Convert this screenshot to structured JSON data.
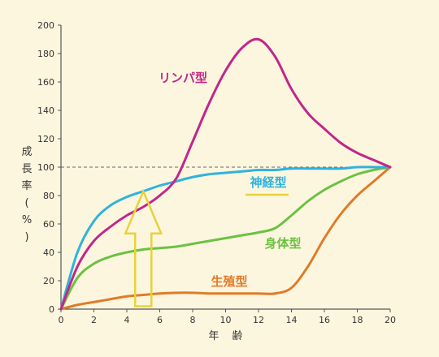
{
  "chart_data": {
    "type": "line",
    "xlabel": "年 齢",
    "ylabel": [
      "成",
      "長",
      "率",
      "(",
      "%",
      ")"
    ],
    "xlim": [
      0,
      20
    ],
    "ylim": [
      0,
      200
    ],
    "x_ticks": [
      0,
      2,
      4,
      6,
      8,
      10,
      12,
      14,
      16,
      18,
      20
    ],
    "y_ticks": [
      0,
      20,
      40,
      60,
      80,
      100,
      120,
      140,
      160,
      180,
      200
    ],
    "reference_line": 100,
    "grid": false,
    "series": [
      {
        "name": "リンパ型",
        "color": "#c2268a",
        "points": [
          [
            0,
            0
          ],
          [
            1,
            30
          ],
          [
            2,
            48
          ],
          [
            3,
            58
          ],
          [
            4,
            66
          ],
          [
            5,
            72
          ],
          [
            6,
            80
          ],
          [
            7,
            92
          ],
          [
            8,
            118
          ],
          [
            9,
            145
          ],
          [
            10,
            168
          ],
          [
            11,
            184
          ],
          [
            12,
            190
          ],
          [
            13,
            178
          ],
          [
            14,
            155
          ],
          [
            15,
            138
          ],
          [
            16,
            127
          ],
          [
            17,
            117
          ],
          [
            18,
            110
          ],
          [
            19,
            105
          ],
          [
            20,
            100
          ]
        ]
      },
      {
        "name": "神経型",
        "color": "#2eb3dd",
        "points": [
          [
            0,
            0
          ],
          [
            1,
            40
          ],
          [
            2,
            62
          ],
          [
            3,
            73
          ],
          [
            4,
            79
          ],
          [
            5,
            83
          ],
          [
            6,
            87
          ],
          [
            7,
            90
          ],
          [
            8,
            93
          ],
          [
            9,
            95
          ],
          [
            10,
            96
          ],
          [
            11,
            97
          ],
          [
            12,
            98
          ],
          [
            13,
            98
          ],
          [
            14,
            99
          ],
          [
            15,
            99
          ],
          [
            16,
            99
          ],
          [
            17,
            99
          ],
          [
            18,
            100
          ],
          [
            19,
            100
          ],
          [
            20,
            100
          ]
        ]
      },
      {
        "name": "身体型",
        "color": "#6cc142",
        "points": [
          [
            0,
            0
          ],
          [
            1,
            22
          ],
          [
            2,
            32
          ],
          [
            3,
            37
          ],
          [
            4,
            40
          ],
          [
            5,
            42
          ],
          [
            6,
            43
          ],
          [
            7,
            44
          ],
          [
            8,
            46
          ],
          [
            9,
            48
          ],
          [
            10,
            50
          ],
          [
            11,
            52
          ],
          [
            12,
            54
          ],
          [
            13,
            57
          ],
          [
            14,
            66
          ],
          [
            15,
            76
          ],
          [
            16,
            84
          ],
          [
            17,
            90
          ],
          [
            18,
            95
          ],
          [
            19,
            98
          ],
          [
            20,
            100
          ]
        ]
      },
      {
        "name": "生殖型",
        "color": "#e07b28",
        "points": [
          [
            0,
            0
          ],
          [
            1,
            3
          ],
          [
            2,
            5
          ],
          [
            3,
            7
          ],
          [
            4,
            9
          ],
          [
            5,
            10
          ],
          [
            6,
            11
          ],
          [
            7,
            11.5
          ],
          [
            8,
            11.5
          ],
          [
            9,
            11
          ],
          [
            10,
            11
          ],
          [
            11,
            11
          ],
          [
            12,
            11
          ],
          [
            13,
            11
          ],
          [
            14,
            15
          ],
          [
            15,
            30
          ],
          [
            16,
            50
          ],
          [
            17,
            67
          ],
          [
            18,
            80
          ],
          [
            19,
            90
          ],
          [
            20,
            100
          ]
        ]
      }
    ],
    "annotations": {
      "arrow_color": "#e8d23a",
      "arrow_x": 5,
      "arrow_y_from": 2,
      "arrow_y_to": 83,
      "underline_color": "#e8d23a"
    }
  }
}
